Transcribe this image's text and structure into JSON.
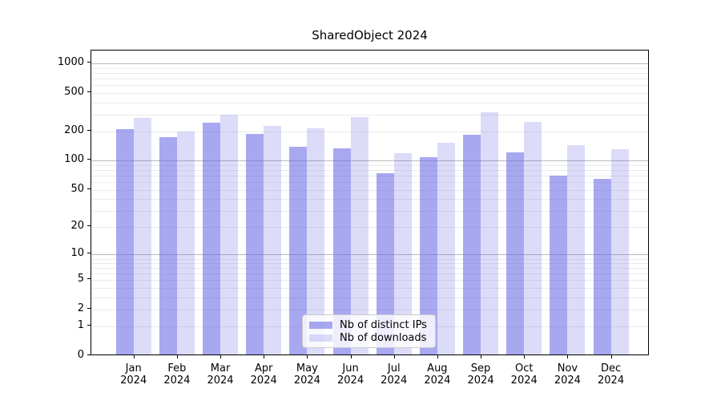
{
  "chart_data": {
    "type": "bar",
    "title": "SharedObject 2024",
    "categories": [
      "Jan",
      "Feb",
      "Mar",
      "Apr",
      "May",
      "Jun",
      "Jul",
      "Aug",
      "Sep",
      "Oct",
      "Nov",
      "Dec"
    ],
    "x_tick_year": "2024",
    "series": [
      {
        "name": "Nb of distinct IPs",
        "color": "rgba(102,102,230,0.57)",
        "color_hex_on_white": "#a8a8f1",
        "values": [
          205,
          168,
          237,
          184,
          134,
          129,
          71,
          104,
          180,
          118,
          68,
          62
        ]
      },
      {
        "name": "Nb of downloads",
        "color": "rgba(102,102,230,0.23)",
        "color_hex_on_white": "#dcdcf9",
        "values": [
          267,
          193,
          286,
          221,
          209,
          270,
          115,
          147,
          308,
          241,
          139,
          128
        ]
      }
    ],
    "y_ticks": [
      0,
      1,
      2,
      5,
      10,
      20,
      50,
      100,
      200,
      500,
      1000
    ],
    "y_scale": "log(value+1)",
    "ylim": [
      0,
      1370
    ],
    "xlabel": "",
    "ylabel": "",
    "grid": "on",
    "legend_position": "lower-center"
  }
}
